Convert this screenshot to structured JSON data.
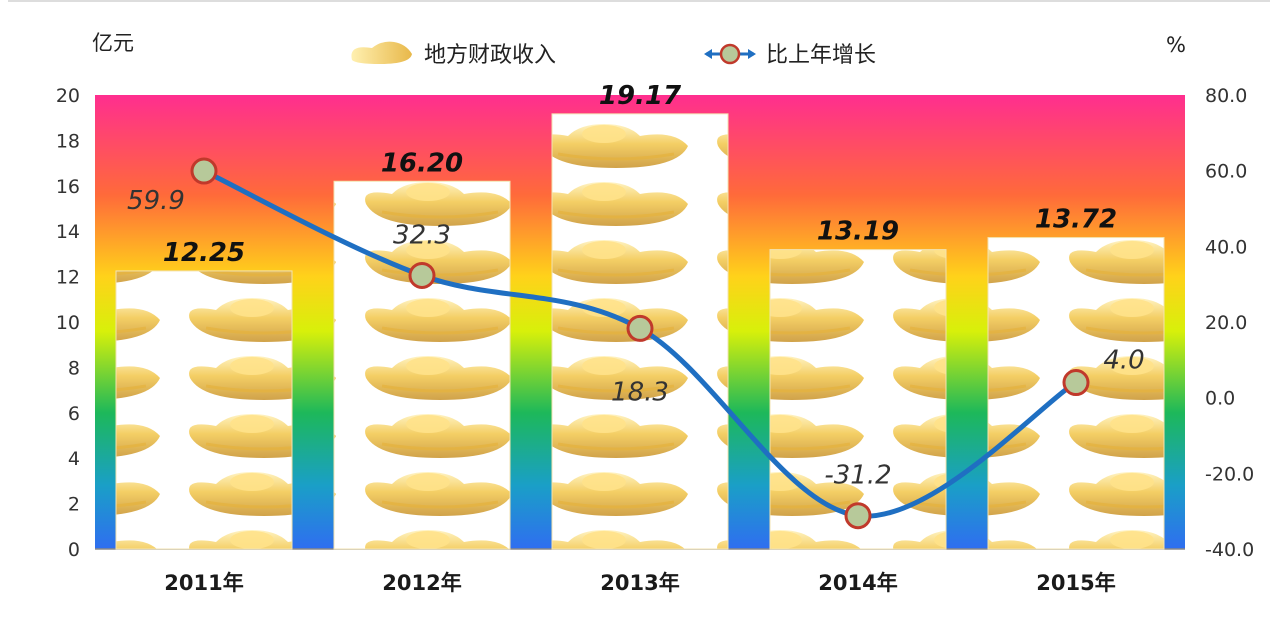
{
  "chart_data": {
    "type": "bar",
    "title": "",
    "categories": [
      "2011年",
      "2012年",
      "2013年",
      "2014年",
      "2015年"
    ],
    "left_axis": {
      "unit": "亿元",
      "ylim": [
        0,
        20
      ],
      "ticks": [
        "0",
        "2",
        "4",
        "6",
        "8",
        "10",
        "12",
        "14",
        "16",
        "18",
        "20"
      ]
    },
    "right_axis": {
      "unit": "%",
      "ylim": [
        -40,
        80
      ],
      "ticks": [
        "-40.0",
        "-20.0",
        "0.0",
        "20.0",
        "40.0",
        "60.0",
        "80.0"
      ]
    },
    "series": [
      {
        "name": "地方财政收入",
        "type": "bar",
        "axis": "left",
        "values": [
          12.25,
          16.2,
          19.17,
          13.19,
          13.72
        ],
        "labels": [
          "12.25",
          "16.20",
          "19.17",
          "13.19",
          "13.72"
        ]
      },
      {
        "name": "比上年增长",
        "type": "line",
        "axis": "right",
        "values": [
          59.9,
          32.3,
          18.3,
          -31.2,
          4.0
        ],
        "labels": [
          "59.9",
          "32.3",
          "18.3",
          "-31.2",
          "4.0"
        ]
      }
    ],
    "legend_position": "top",
    "grid": false,
    "colors": {
      "line": "#1f6fc2",
      "marker_fill": "#b7c99a",
      "marker_stroke": "#c0392b"
    }
  }
}
